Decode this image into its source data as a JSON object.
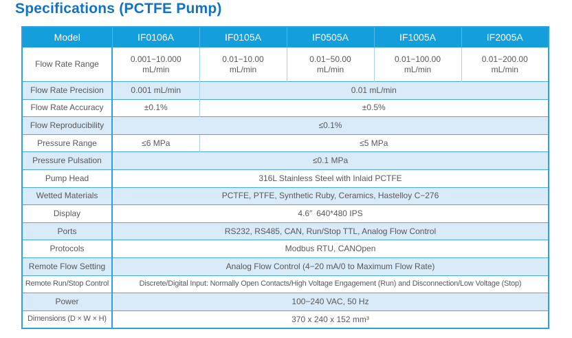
{
  "page": {
    "title": "Specifications (PCTFE Pump)"
  },
  "colors": {
    "title_blue": "#1272c4",
    "header_bg": "#149edc",
    "header_text": "#ffffff",
    "row_alt_bg": "#d9eaf8",
    "outer_border": "#2ba2df",
    "body_text": "#595757"
  },
  "table": {
    "header": {
      "label": "Model",
      "models": [
        "IF0106A",
        "IF0105A",
        "IF0505A",
        "IF1005A",
        "IF2005A"
      ]
    },
    "rows": [
      {
        "label": "Flow Rate Range",
        "cells": [
          {
            "text": "0.001−10.000\nmL/min",
            "span": 1
          },
          {
            "text": "0.01−10.00\nmL/min",
            "span": 1
          },
          {
            "text": "0.01−50.00\nmL/min",
            "span": 1
          },
          {
            "text": "0.01−100.00\nmL/min",
            "span": 1
          },
          {
            "text": "0.01−200.00\nmL/min",
            "span": 1
          }
        ]
      },
      {
        "label": "Flow Rate Precision",
        "cells": [
          {
            "text": "0.001 mL/min",
            "span": 1
          },
          {
            "text": "0.01 mL/min",
            "span": 4
          }
        ]
      },
      {
        "label": "Flow Rate Accuracy",
        "cells": [
          {
            "text": "±0.1%",
            "span": 1
          },
          {
            "text": "±0.5%",
            "span": 4
          }
        ]
      },
      {
        "label": "Flow Reproducibility",
        "cells": [
          {
            "text": "≤0.1%",
            "span": 5
          }
        ]
      },
      {
        "label": "Pressure Range",
        "cells": [
          {
            "text": "≤6 MPa",
            "span": 1
          },
          {
            "text": "≤5 MPa",
            "span": 4
          }
        ]
      },
      {
        "label": "Pressure Pulsation",
        "cells": [
          {
            "text": "≤0.1 MPa",
            "span": 5
          }
        ]
      },
      {
        "label": "Pump Head",
        "cells": [
          {
            "text": "316L Stainless Steel with Inlaid PCTFE",
            "span": 5
          }
        ]
      },
      {
        "label": "Wetted Materials",
        "cells": [
          {
            "text": "PCTFE, PTFE, Synthetic Ruby, Ceramics, Hastelloy C−276",
            "span": 5
          }
        ]
      },
      {
        "label": "Display",
        "cells": [
          {
            "text": "4.6″ 640*480 IPS",
            "span": 5
          }
        ]
      },
      {
        "label": "Ports",
        "cells": [
          {
            "text": "RS232, RS485, CAN, Run/Stop TTL, Analog Flow Control",
            "span": 5
          }
        ]
      },
      {
        "label": "Protocols",
        "cells": [
          {
            "text": "Modbus RTU, CANOpen",
            "span": 5
          }
        ]
      },
      {
        "label": "Remote Flow Setting",
        "cells": [
          {
            "text": "Analog Flow Control (4−20 mA/0 to Maximum Flow Rate)",
            "span": 5
          }
        ]
      },
      {
        "label": "Remote Run/Stop Control",
        "cells": [
          {
            "text": "Discrete/Digital Input: Normally Open Contacts/High Voltage Engagement (Run) and Disconnection/Low Voltage (Stop)",
            "span": 5
          }
        ]
      },
      {
        "label": "Power",
        "cells": [
          {
            "text": "100−240 VAC, 50 Hz",
            "span": 5
          }
        ]
      },
      {
        "label": "Dimensions (D × W × H)",
        "cells": [
          {
            "text": "370 x 240 x 152 mm³",
            "span": 5
          }
        ]
      }
    ]
  }
}
